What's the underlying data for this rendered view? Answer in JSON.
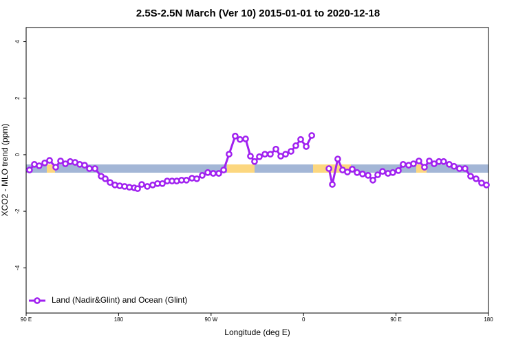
{
  "chart_data": {
    "type": "line",
    "title": "2.5S-2.5N March (Ver 10)   2015-01-01 to 2020-12-18",
    "x_label": "Longitude (deg E)",
    "y_label": "XCO2 - MLO trend (ppm)",
    "xlim": [
      90,
      540
    ],
    "ylim": [
      -5.6,
      4.5
    ],
    "xticks": [
      {
        "value": 90,
        "label": "90 E"
      },
      {
        "value": 180,
        "label": "180"
      },
      {
        "value": 270,
        "label": "90 W"
      },
      {
        "value": 360,
        "label": "0"
      },
      {
        "value": 450,
        "label": "90 E"
      },
      {
        "value": 540,
        "label": "180"
      }
    ],
    "yticks": [
      -4,
      -2,
      0,
      2,
      4
    ],
    "legend": "bottom-left",
    "x": [
      93.3,
      98.0,
      102.7,
      108.1,
      112.8,
      118.8,
      123.5,
      128.2,
      132.9,
      137.6,
      142.2,
      146.9,
      151.6,
      157.0,
      163.0,
      167.0,
      171.7,
      176.4,
      181.1,
      185.8,
      190.5,
      195.2,
      198.5,
      202.5,
      207.9,
      213.2,
      217.9,
      222.6,
      227.3,
      232.0,
      236.6,
      241.3,
      246.0,
      251.4,
      256.1,
      261.4,
      266.8,
      272.1,
      277.5,
      282.2,
      287.5,
      293.5,
      298.2,
      303.6,
      308.3,
      312.3,
      317.0,
      322.4,
      327.7,
      333.1,
      337.8,
      342.5,
      347.8,
      352.5,
      357.2,
      362.6,
      368.0,
      376.0,
      384.7,
      388.0,
      393.3,
      398.0,
      402.7,
      407.4,
      412.1,
      417.4,
      422.8,
      427.5,
      432.2,
      436.9,
      442.2,
      446.9,
      452.3,
      456.9,
      462.3,
      467.0,
      472.3,
      477.7,
      482.4,
      487.1,
      491.8,
      496.4,
      501.8,
      506.5,
      511.8,
      517.2,
      522.6,
      527.9,
      533.3,
      538.0
    ],
    "series": [
      {
        "name": "Land (Nadir&Glint) and Ocean (Glint)",
        "color": "#a020f0",
        "values": [
          -0.54,
          -0.34,
          -0.39,
          -0.29,
          -0.2,
          -0.44,
          -0.22,
          -0.32,
          -0.24,
          -0.27,
          -0.34,
          -0.37,
          -0.49,
          -0.49,
          -0.76,
          -0.85,
          -0.98,
          -1.07,
          -1.1,
          -1.12,
          -1.15,
          -1.17,
          -1.2,
          -1.05,
          -1.12,
          -1.07,
          -1.02,
          -1.02,
          -0.93,
          -0.93,
          -0.93,
          -0.9,
          -0.9,
          -0.83,
          -0.85,
          -0.73,
          -0.63,
          -0.66,
          -0.66,
          -0.54,
          0.02,
          0.66,
          0.54,
          0.56,
          -0.05,
          -0.24,
          -0.07,
          0.02,
          0.02,
          0.2,
          -0.05,
          0.02,
          0.12,
          0.32,
          0.54,
          0.29,
          0.68,
          null,
          -0.49,
          -1.05,
          -0.15,
          -0.54,
          -0.61,
          -0.51,
          -0.63,
          -0.68,
          -0.73,
          -0.9,
          -0.71,
          -0.59,
          -0.66,
          -0.63,
          -0.56,
          -0.34,
          -0.37,
          -0.32,
          -0.22,
          -0.44,
          -0.22,
          -0.32,
          -0.24,
          -0.24,
          -0.34,
          -0.41,
          -0.49,
          -0.49,
          -0.76,
          -0.85,
          -1.0,
          -1.07
        ]
      }
    ]
  }
}
